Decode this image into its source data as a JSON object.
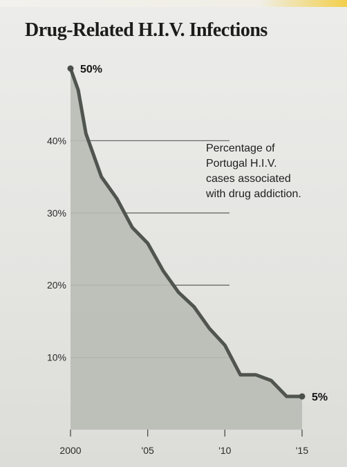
{
  "chart_data": {
    "type": "area",
    "title": "Drug-Related H.I.V. Infections",
    "annotation": [
      "Percentage of",
      "Portugal H.I.V.",
      "cases associated",
      "with drug addiction."
    ],
    "x_ticks": [
      "2000",
      "'05",
      "'10",
      "'15"
    ],
    "x_tick_values": [
      2000,
      2005,
      2010,
      2015
    ],
    "y_ticks": [
      "10%",
      "20%",
      "30%",
      "40%"
    ],
    "y_tick_values": [
      10,
      20,
      30,
      40
    ],
    "xlim": [
      2000,
      2015
    ],
    "ylim": [
      0,
      50
    ],
    "grid": true,
    "start_label": "50%",
    "end_label": "5%",
    "x": [
      2000,
      2000.5,
      2001,
      2002,
      2003,
      2004,
      2005,
      2006,
      2007,
      2008,
      2009,
      2010,
      2011,
      2012,
      2013,
      2014,
      2015
    ],
    "values": [
      50,
      47,
      41,
      35,
      32,
      28,
      25.8,
      22,
      19,
      17,
      14,
      11.7,
      7.6,
      7.6,
      6.8,
      4.6,
      4.6
    ],
    "colors": {
      "line": "#505550",
      "fill": "#b8bdb5",
      "grid": "#6a6a6a"
    }
  }
}
